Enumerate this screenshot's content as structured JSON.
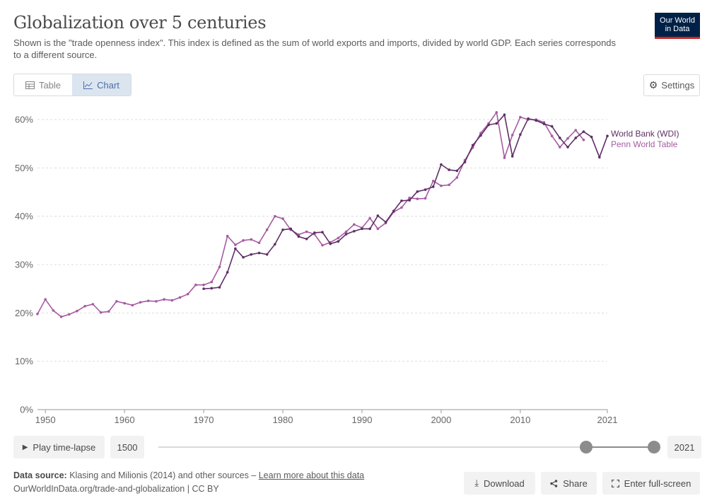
{
  "header": {
    "title": "Globalization over 5 centuries",
    "subtitle": "Shown is the \"trade openness index\". This index is defined as the sum of world exports and imports, divided by world GDP. Each series corresponds to a different source.",
    "logo_line1": "Our World",
    "logo_line2": "in Data"
  },
  "tabs": [
    {
      "label": "Table",
      "icon": "table-icon",
      "active": false
    },
    {
      "label": "Chart",
      "icon": "line-chart-icon",
      "active": true
    }
  ],
  "settings_label": "Settings",
  "chart_data": {
    "type": "line",
    "title": "Globalization over 5 centuries",
    "xlabel": "",
    "ylabel": "",
    "xlim": [
      1949,
      2021
    ],
    "ylim": [
      0,
      60
    ],
    "x_ticks": [
      1950,
      1960,
      1970,
      1980,
      1990,
      2000,
      2010,
      2021
    ],
    "y_ticks": [
      0,
      10,
      20,
      30,
      40,
      50,
      60
    ],
    "y_tick_labels": [
      "0%",
      "10%",
      "20%",
      "30%",
      "40%",
      "50%",
      "60%"
    ],
    "grid": "horizontal dashed",
    "legend": "right, inline labels at line ends",
    "series": [
      {
        "name": "World Bank (WDI)",
        "color": "#5e2f66",
        "points": [
          [
            1970,
            25.0
          ],
          [
            1971,
            25.1
          ],
          [
            1972,
            25.3
          ],
          [
            1973,
            28.4
          ],
          [
            1974,
            33.3
          ],
          [
            1975,
            31.5
          ],
          [
            1976,
            32.1
          ],
          [
            1977,
            32.4
          ],
          [
            1978,
            32.1
          ],
          [
            1979,
            34.2
          ],
          [
            1980,
            37.2
          ],
          [
            1981,
            37.4
          ],
          [
            1982,
            35.8
          ],
          [
            1983,
            35.3
          ],
          [
            1984,
            36.6
          ],
          [
            1985,
            36.7
          ],
          [
            1986,
            34.3
          ],
          [
            1987,
            34.8
          ],
          [
            1988,
            36.3
          ],
          [
            1989,
            36.9
          ],
          [
            1990,
            37.4
          ],
          [
            1991,
            37.4
          ],
          [
            1992,
            40.1
          ],
          [
            1993,
            38.8
          ],
          [
            1994,
            41.1
          ],
          [
            1995,
            43.2
          ],
          [
            1996,
            43.3
          ],
          [
            1997,
            45.1
          ],
          [
            1998,
            45.5
          ],
          [
            1999,
            46.1
          ],
          [
            2000,
            50.7
          ],
          [
            2001,
            49.6
          ],
          [
            2002,
            49.4
          ],
          [
            2003,
            51.2
          ],
          [
            2004,
            54.7
          ],
          [
            2005,
            56.7
          ],
          [
            2006,
            58.9
          ],
          [
            2007,
            59.2
          ],
          [
            2008,
            61.0
          ],
          [
            2009,
            52.4
          ],
          [
            2010,
            56.9
          ],
          [
            2011,
            60.2
          ],
          [
            2012,
            59.8
          ],
          [
            2013,
            59.1
          ],
          [
            2014,
            58.6
          ],
          [
            2015,
            56.2
          ],
          [
            2016,
            54.3
          ],
          [
            2017,
            56.2
          ],
          [
            2018,
            57.5
          ],
          [
            2019,
            56.4
          ],
          [
            2020,
            52.2
          ],
          [
            2021,
            56.6
          ]
        ]
      },
      {
        "name": "Penn World Table",
        "color": "#a65ba1",
        "points": [
          [
            1949,
            19.8
          ],
          [
            1950,
            22.8
          ],
          [
            1951,
            20.5
          ],
          [
            1952,
            19.2
          ],
          [
            1953,
            19.7
          ],
          [
            1954,
            20.4
          ],
          [
            1955,
            21.4
          ],
          [
            1956,
            21.8
          ],
          [
            1957,
            20.1
          ],
          [
            1958,
            20.3
          ],
          [
            1959,
            22.4
          ],
          [
            1960,
            22.0
          ],
          [
            1961,
            21.6
          ],
          [
            1962,
            22.2
          ],
          [
            1963,
            22.5
          ],
          [
            1964,
            22.4
          ],
          [
            1965,
            22.8
          ],
          [
            1966,
            22.6
          ],
          [
            1967,
            23.2
          ],
          [
            1968,
            23.9
          ],
          [
            1969,
            25.8
          ],
          [
            1970,
            25.8
          ],
          [
            1971,
            26.4
          ],
          [
            1972,
            29.5
          ],
          [
            1973,
            35.9
          ],
          [
            1974,
            34.1
          ],
          [
            1975,
            35.0
          ],
          [
            1976,
            35.2
          ],
          [
            1977,
            34.5
          ],
          [
            1978,
            37.2
          ],
          [
            1979,
            40.0
          ],
          [
            1980,
            39.5
          ],
          [
            1981,
            37.2
          ],
          [
            1982,
            36.2
          ],
          [
            1983,
            36.8
          ],
          [
            1984,
            36.3
          ],
          [
            1985,
            34.0
          ],
          [
            1986,
            34.6
          ],
          [
            1987,
            35.5
          ],
          [
            1988,
            36.8
          ],
          [
            1989,
            38.3
          ],
          [
            1990,
            37.6
          ],
          [
            1991,
            39.6
          ],
          [
            1992,
            37.4
          ],
          [
            1993,
            38.6
          ],
          [
            1994,
            40.9
          ],
          [
            1995,
            41.8
          ],
          [
            1996,
            43.8
          ],
          [
            1997,
            43.6
          ],
          [
            1998,
            43.7
          ],
          [
            1999,
            47.3
          ],
          [
            2000,
            46.3
          ],
          [
            2001,
            46.5
          ],
          [
            2002,
            48.0
          ],
          [
            2003,
            51.6
          ],
          [
            2004,
            54.2
          ],
          [
            2005,
            57.2
          ],
          [
            2006,
            59.2
          ],
          [
            2007,
            61.5
          ],
          [
            2008,
            52.1
          ],
          [
            2009,
            56.8
          ],
          [
            2010,
            60.5
          ],
          [
            2011,
            60.0
          ],
          [
            2012,
            60.0
          ],
          [
            2013,
            59.4
          ],
          [
            2014,
            56.6
          ],
          [
            2015,
            54.3
          ],
          [
            2016,
            56.1
          ],
          [
            2017,
            57.8
          ],
          [
            2018,
            55.8
          ]
        ]
      }
    ]
  },
  "timeline": {
    "play_label": "Play time-lapse",
    "start_year": "1500",
    "end_year": "2021"
  },
  "footer": {
    "source_label": "Data source:",
    "source_text": "Klasing and Milionis (2014) and other sources – ",
    "learn_more": "Learn more about this data",
    "url_line": "OurWorldInData.org/trade-and-globalization | CC BY",
    "download_label": "Download",
    "share_label": "Share",
    "fullscreen_label": "Enter full-screen"
  }
}
